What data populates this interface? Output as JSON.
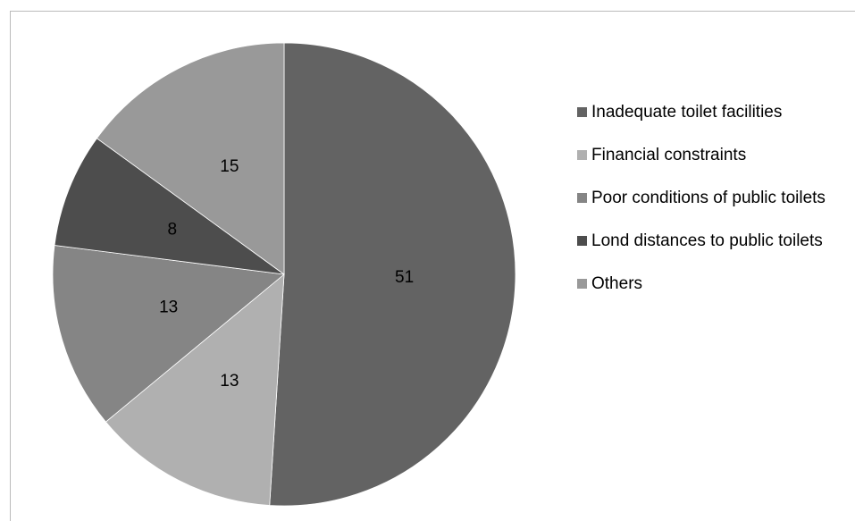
{
  "chart_data": {
    "type": "pie",
    "categories": [
      "Inadequate toilet facilities",
      "Financial constraints",
      "Poor conditions of public toilets",
      "Lond distances to public toilets",
      "Others"
    ],
    "values": [
      51,
      13,
      13,
      8,
      15
    ],
    "colors": [
      "#636363",
      "#b0b0b0",
      "#858585",
      "#4d4d4d",
      "#999999"
    ],
    "legend": "right"
  }
}
